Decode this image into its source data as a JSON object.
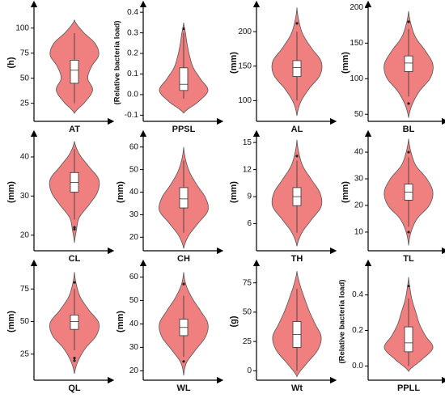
{
  "chart_data": [
    {
      "type": "violin",
      "xlabel": "AT",
      "ylabel": "(h)",
      "color": "#f08080",
      "ylim": [
        7,
        124
      ],
      "yticks": [
        25,
        50,
        75,
        100
      ],
      "range": [
        15,
        108
      ],
      "density": [
        0,
        0.45,
        0.75,
        0.55,
        0.7,
        1,
        0.85,
        0.35,
        0
      ],
      "box": {
        "whislo": 25,
        "q1": 45,
        "med": 58,
        "q3": 68,
        "whishi": 95
      },
      "outliers": []
    },
    {
      "type": "violin",
      "xlabel": "PPSL",
      "ylabel": "(Relative bacteria load)",
      "color": "#f08080",
      "ylim": [
        -0.13,
        0.44
      ],
      "yticks": [
        -0.1,
        {
          "value": 0,
          "label": "0.0"
        },
        0.1,
        0.2,
        0.3,
        0.4
      ],
      "range": [
        -0.09,
        0.35
      ],
      "density": [
        0,
        0.6,
        1,
        0.7,
        0.4,
        0.25,
        0.15,
        0.08,
        0
      ],
      "box": {
        "whislo": -0.02,
        "q1": 0.02,
        "med": 0.05,
        "q3": 0.13,
        "whishi": 0.3
      },
      "outliers": [
        0.32
      ]
    },
    {
      "type": "violin",
      "xlabel": "AL",
      "ylabel": "(mm)",
      "color": "#f08080",
      "ylim": [
        70,
        240
      ],
      "yticks": [
        100,
        150,
        200
      ],
      "range": [
        78,
        235
      ],
      "density": [
        0,
        0.15,
        0.5,
        0.95,
        1,
        0.6,
        0.25,
        0.08,
        0
      ],
      "box": {
        "whislo": 100,
        "q1": 135,
        "med": 148,
        "q3": 158,
        "whishi": 200
      },
      "outliers": [
        212
      ]
    },
    {
      "type": "violin",
      "xlabel": "BL",
      "ylabel": "(mm)",
      "color": "#f08080",
      "ylim": [
        40,
        205
      ],
      "yticks": [
        50,
        100,
        150,
        200
      ],
      "range": [
        45,
        195
      ],
      "density": [
        0,
        0.15,
        0.45,
        0.9,
        1,
        0.7,
        0.3,
        0.1,
        0
      ],
      "box": {
        "whislo": 75,
        "q1": 110,
        "med": 122,
        "q3": 132,
        "whishi": 170
      },
      "outliers": [
        180,
        65
      ]
    },
    {
      "type": "violin",
      "xlabel": "CL",
      "ylabel": "(mm)",
      "color": "#f08080",
      "ylim": [
        16,
        46
      ],
      "yticks": [
        20,
        30,
        40
      ],
      "range": [
        18,
        44
      ],
      "density": [
        0,
        0.08,
        0.2,
        0.6,
        0.95,
        1,
        0.6,
        0.2,
        0
      ],
      "box": {
        "whislo": 24,
        "q1": 31,
        "med": 33.5,
        "q3": 36,
        "whishi": 42
      },
      "outliers": [
        22,
        21.5
      ]
    },
    {
      "type": "violin",
      "xlabel": "CH",
      "ylabel": "(mm)",
      "color": "#f08080",
      "ylim": [
        14,
        66
      ],
      "yticks": [
        20,
        30,
        40,
        50,
        60
      ],
      "range": [
        15,
        60
      ],
      "density": [
        0,
        0.2,
        0.6,
        1,
        0.9,
        0.55,
        0.25,
        0.08,
        0
      ],
      "box": {
        "whislo": 22,
        "q1": 33,
        "med": 37,
        "q3": 42,
        "whishi": 54
      },
      "outliers": []
    },
    {
      "type": "violin",
      "xlabel": "TH",
      "ylabel": "(mm)",
      "color": "#f08080",
      "ylim": [
        3,
        16
      ],
      "yticks": [
        6,
        9,
        12,
        15
      ],
      "range": [
        3.5,
        15.3
      ],
      "density": [
        0,
        0.2,
        0.6,
        1,
        0.95,
        0.6,
        0.25,
        0.08,
        0
      ],
      "box": {
        "whislo": 5,
        "q1": 8,
        "med": 9,
        "q3": 10,
        "whishi": 13
      },
      "outliers": [
        13.5
      ]
    },
    {
      "type": "violin",
      "xlabel": "TL",
      "ylabel": "(mm)",
      "color": "#f08080",
      "ylim": [
        3,
        47
      ],
      "yticks": [
        10,
        20,
        30,
        40
      ],
      "range": [
        5,
        45
      ],
      "density": [
        0,
        0.1,
        0.35,
        0.85,
        1,
        0.75,
        0.3,
        0.1,
        0
      ],
      "box": {
        "whislo": 12,
        "q1": 22,
        "med": 25,
        "q3": 28,
        "whishi": 38
      },
      "outliers": [
        40,
        10
      ]
    },
    {
      "type": "violin",
      "xlabel": "QL",
      "ylabel": "(mm)",
      "color": "#f08080",
      "ylim": [
        5,
        95
      ],
      "yticks": [
        25,
        50,
        75
      ],
      "range": [
        10,
        88
      ],
      "density": [
        0,
        0.15,
        0.45,
        0.9,
        1,
        0.6,
        0.25,
        0.08,
        0
      ],
      "box": {
        "whislo": 28,
        "q1": 44,
        "med": 50,
        "q3": 55,
        "whishi": 75
      },
      "outliers": [
        80,
        22,
        20
      ]
    },
    {
      "type": "violin",
      "xlabel": "WL",
      "ylabel": "(mm)",
      "color": "#f08080",
      "ylim": [
        16,
        66
      ],
      "yticks": [
        20,
        30,
        40,
        50,
        60
      ],
      "range": [
        18,
        62
      ],
      "density": [
        0,
        0.12,
        0.5,
        0.9,
        1,
        0.7,
        0.35,
        0.1,
        0
      ],
      "box": {
        "whislo": 26,
        "q1": 35,
        "med": 38.5,
        "q3": 42,
        "whishi": 52
      },
      "outliers": [
        57,
        24
      ]
    },
    {
      "type": "violin",
      "xlabel": "Wt",
      "ylabel": "(g)",
      "color": "#f08080",
      "ylim": [
        -8,
        92
      ],
      "yticks": [
        0,
        25,
        50,
        75
      ],
      "range": [
        -5,
        85
      ],
      "density": [
        0,
        0.4,
        0.85,
        1,
        0.75,
        0.5,
        0.3,
        0.12,
        0
      ],
      "box": {
        "whislo": 0,
        "q1": 20,
        "med": 31,
        "q3": 42,
        "whishi": 70
      },
      "outliers": []
    },
    {
      "type": "violin",
      "xlabel": "PPLL",
      "ylabel": "(Relative bacteria load)",
      "color": "#f08080",
      "ylim": [
        -0.08,
        0.58
      ],
      "yticks": [
        {
          "value": 0,
          "label": "0.0"
        },
        0.2,
        0.4
      ],
      "range": [
        -0.03,
        0.5
      ],
      "density": [
        0,
        0.55,
        1,
        0.7,
        0.45,
        0.3,
        0.15,
        0.06,
        0
      ],
      "box": {
        "whislo": 0,
        "q1": 0.08,
        "med": 0.13,
        "q3": 0.22,
        "whishi": 0.38
      },
      "outliers": [
        0.45
      ]
    }
  ]
}
